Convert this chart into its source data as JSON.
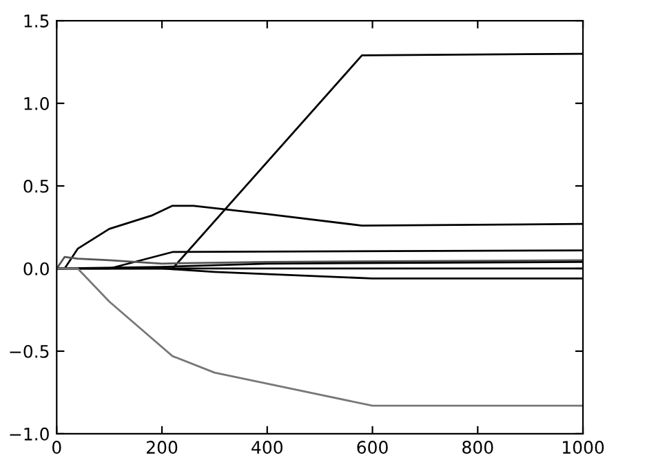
{
  "chart_data": {
    "type": "line",
    "xlim": [
      0,
      1000
    ],
    "ylim": [
      -1.0,
      1.5
    ],
    "xticks": [
      0,
      200,
      400,
      600,
      800,
      {
        "value": 1000,
        "label": "1000"
      }
    ],
    "yticks": [
      {
        "value": -1.0,
        "label": "−1.0"
      },
      {
        "value": -0.5,
        "label": "−0.5"
      },
      {
        "value": 0.0,
        "label": "0.0"
      },
      {
        "value": 0.5,
        "label": "0.5"
      },
      {
        "value": 1.0,
        "label": "1.0"
      },
      {
        "value": 1.5,
        "label": "1.5"
      }
    ],
    "grid": false,
    "series": [
      {
        "color": "#000000",
        "x": [
          0,
          220,
          580,
          1000
        ],
        "values": [
          0,
          0,
          1.29,
          1.3
        ]
      },
      {
        "color": "#000000",
        "x": [
          0,
          15,
          40,
          100,
          180,
          220,
          260,
          400,
          580,
          1000
        ],
        "values": [
          0,
          0,
          0.12,
          0.24,
          0.32,
          0.38,
          0.38,
          0.33,
          0.26,
          0.27
        ]
      },
      {
        "color": "#000000",
        "x": [
          0,
          100,
          220,
          1000
        ],
        "values": [
          0,
          0,
          0.1,
          0.11
        ]
      },
      {
        "color": "#555555",
        "x": [
          0,
          15,
          40,
          100,
          200,
          400,
          1000
        ],
        "values": [
          0,
          0.07,
          0.06,
          0.05,
          0.03,
          0.04,
          0.05
        ]
      },
      {
        "color": "#000000",
        "x": [
          0,
          200,
          400,
          1000
        ],
        "values": [
          0,
          0.01,
          0.03,
          0.04
        ]
      },
      {
        "color": "#000000",
        "x": [
          0,
          200,
          300,
          600,
          1000
        ],
        "values": [
          0,
          0,
          -0.02,
          -0.06,
          -0.06
        ]
      },
      {
        "color": "#000000",
        "x": [
          0,
          1000
        ],
        "values": [
          0,
          0
        ]
      },
      {
        "color": "#777777",
        "x": [
          0,
          40,
          100,
          220,
          300,
          450,
          600,
          1000
        ],
        "values": [
          0,
          0,
          -0.2,
          -0.53,
          -0.63,
          -0.73,
          -0.83,
          -0.83
        ]
      }
    ]
  }
}
